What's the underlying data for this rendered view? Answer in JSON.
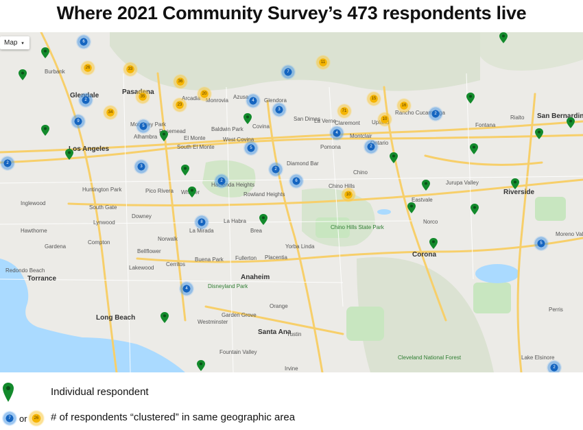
{
  "title": "Where 2021 Community Survey’s 473 respondents live",
  "map_type_label": "Map",
  "legend": {
    "individual_label": "Individual respondent",
    "cluster_label": "# of respondents “clustered” in same geographic area",
    "or_label": "or",
    "sample_blue": "7",
    "sample_yellow": "26"
  },
  "colors": {
    "individual_pin": "#138a2c",
    "cluster_blue": "#1565c0",
    "cluster_yellow": "#f5b400",
    "water": "#aadaff",
    "park": "#c8e6c0",
    "freeway": "#f7cf6a"
  },
  "places": [
    {
      "id": "los-angeles",
      "label": "Los Angeles",
      "big": true
    },
    {
      "id": "pasadena",
      "label": "Pasadena",
      "big": true
    },
    {
      "id": "glendale",
      "label": "Glendale",
      "big": true
    },
    {
      "id": "burbank",
      "label": "Burbank"
    },
    {
      "id": "alhambra",
      "label": "Alhambra"
    },
    {
      "id": "monterey-park",
      "label": "Monterey Park"
    },
    {
      "id": "rosemead",
      "label": "Rosemead"
    },
    {
      "id": "el-monte",
      "label": "El Monte"
    },
    {
      "id": "south-el-monte",
      "label": "South El Monte"
    },
    {
      "id": "west-covina",
      "label": "West Covina"
    },
    {
      "id": "covina",
      "label": "Covina"
    },
    {
      "id": "baldwin-park",
      "label": "Baldwin Park"
    },
    {
      "id": "pomona",
      "label": "Pomona"
    },
    {
      "id": "diamond-bar",
      "label": "Diamond Bar"
    },
    {
      "id": "ontario",
      "label": "Ontario"
    },
    {
      "id": "chino",
      "label": "Chino"
    },
    {
      "id": "chino-hills",
      "label": "Chino Hills"
    },
    {
      "id": "rancho-cucamonga",
      "label": "Rancho Cucamonga"
    },
    {
      "id": "upland",
      "label": "Upland"
    },
    {
      "id": "claremont",
      "label": "Claremont"
    },
    {
      "id": "fontana",
      "label": "Fontana"
    },
    {
      "id": "rialto",
      "label": "Rialto"
    },
    {
      "id": "san-bernardino",
      "label": "San Bernardino",
      "big": true
    },
    {
      "id": "riverside",
      "label": "Riverside",
      "big": true
    },
    {
      "id": "jurupa-valley",
      "label": "Jurupa Valley"
    },
    {
      "id": "norco",
      "label": "Norco"
    },
    {
      "id": "corona",
      "label": "Corona",
      "big": true
    },
    {
      "id": "yorba-linda",
      "label": "Yorba Linda"
    },
    {
      "id": "fullerton",
      "label": "Fullerton"
    },
    {
      "id": "placentia",
      "label": "Placentia"
    },
    {
      "id": "brea",
      "label": "Brea"
    },
    {
      "id": "la-habra",
      "label": "La Habra"
    },
    {
      "id": "anaheim",
      "label": "Anaheim",
      "big": true
    },
    {
      "id": "orange",
      "label": "Orange"
    },
    {
      "id": "santa-ana",
      "label": "Santa Ana",
      "big": true
    },
    {
      "id": "garden-grove",
      "label": "Garden Grove"
    },
    {
      "id": "westminster",
      "label": "Westminster"
    },
    {
      "id": "fountain-valley",
      "label": "Fountain Valley"
    },
    {
      "id": "irvine",
      "label": "Irvine"
    },
    {
      "id": "tustin",
      "label": "Tustin"
    },
    {
      "id": "long-beach",
      "label": "Long Beach",
      "big": true
    },
    {
      "id": "torrance",
      "label": "Torrance",
      "big": true
    },
    {
      "id": "lakewood",
      "label": "Lakewood"
    },
    {
      "id": "cerritos",
      "label": "Cerritos"
    },
    {
      "id": "buena-park",
      "label": "Buena Park"
    },
    {
      "id": "norwalk",
      "label": "Norwalk"
    },
    {
      "id": "downey",
      "label": "Downey"
    },
    {
      "id": "compton",
      "label": "Compton"
    },
    {
      "id": "gardena",
      "label": "Gardena"
    },
    {
      "id": "hawthorne",
      "label": "Hawthorne"
    },
    {
      "id": "inglewood",
      "label": "Inglewood"
    },
    {
      "id": "south-gate",
      "label": "South Gate"
    },
    {
      "id": "huntington-park",
      "label": "Huntington Park"
    },
    {
      "id": "pico-rivera",
      "label": "Pico Rivera"
    },
    {
      "id": "whittier",
      "label": "Whittier"
    },
    {
      "id": "la-mirada",
      "label": "La Mirada"
    },
    {
      "id": "hacienda-heights",
      "label": "Hacienda Heights"
    },
    {
      "id": "rowland-heights",
      "label": "Rowland Heights"
    },
    {
      "id": "bellflower",
      "label": "Bellflower"
    },
    {
      "id": "lynwood",
      "label": "Lynwood"
    },
    {
      "id": "redondo-beach",
      "label": "Redondo Beach"
    },
    {
      "id": "glendora",
      "label": "Glendora"
    },
    {
      "id": "arcadia",
      "label": "Arcadia"
    },
    {
      "id": "monrovia",
      "label": "Monrovia"
    },
    {
      "id": "azusa",
      "label": "Azusa"
    },
    {
      "id": "san-dimas",
      "label": "San Dimas"
    },
    {
      "id": "la-verne",
      "label": "La Verne"
    },
    {
      "id": "montclair",
      "label": "Montclair"
    },
    {
      "id": "eastvale",
      "label": "Eastvale"
    },
    {
      "id": "moreno-valley",
      "label": "Moreno Valley"
    },
    {
      "id": "perris",
      "label": "Perris"
    },
    {
      "id": "lake-elsinore",
      "label": "Lake Elsinore"
    },
    {
      "id": "chino-hills-state-park",
      "label": "Chino Hills State Park",
      "park": true
    },
    {
      "id": "disneyland",
      "label": "Disneyland Park",
      "park": true
    },
    {
      "id": "cleveland-national-forest",
      "label": "Cleveland National Forest",
      "park": true
    }
  ],
  "clusters": [
    {
      "color": "blue",
      "count": "6"
    },
    {
      "color": "yellow",
      "count": "26"
    },
    {
      "color": "yellow",
      "count": "33"
    },
    {
      "color": "blue",
      "count": "7"
    },
    {
      "color": "yellow",
      "count": "11"
    },
    {
      "color": "blue",
      "count": "2"
    },
    {
      "color": "yellow",
      "count": "36"
    },
    {
      "color": "yellow",
      "count": "35"
    },
    {
      "color": "yellow",
      "count": "20"
    },
    {
      "color": "yellow",
      "count": "23"
    },
    {
      "color": "blue",
      "count": "4"
    },
    {
      "color": "blue",
      "count": "3"
    },
    {
      "color": "yellow",
      "count": "34"
    },
    {
      "color": "blue",
      "count": "9"
    },
    {
      "color": "blue",
      "count": "5"
    },
    {
      "color": "yellow",
      "count": "15"
    },
    {
      "color": "yellow",
      "count": "16"
    },
    {
      "color": "yellow",
      "count": "71"
    },
    {
      "color": "yellow",
      "count": "10"
    },
    {
      "color": "blue",
      "count": "2"
    },
    {
      "color": "blue",
      "count": "4"
    },
    {
      "color": "blue",
      "count": "2"
    },
    {
      "color": "blue",
      "count": "5"
    },
    {
      "color": "blue",
      "count": "2"
    },
    {
      "color": "blue",
      "count": "3"
    },
    {
      "color": "blue",
      "count": "2"
    },
    {
      "color": "blue",
      "count": "6"
    },
    {
      "color": "blue",
      "count": "8"
    },
    {
      "color": "yellow",
      "count": "10"
    },
    {
      "color": "blue",
      "count": "5"
    },
    {
      "color": "blue",
      "count": "4"
    },
    {
      "color": "blue",
      "count": "2"
    },
    {
      "color": "blue",
      "count": "2"
    }
  ]
}
